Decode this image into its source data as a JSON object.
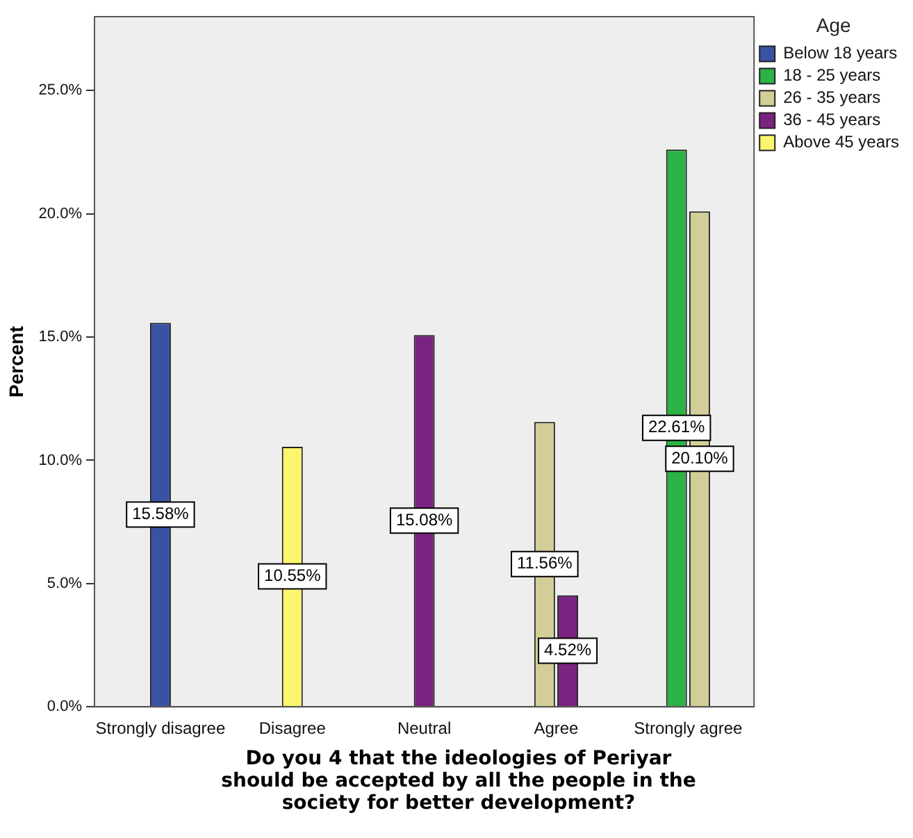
{
  "chart_data": {
    "type": "bar",
    "xlabel": "Do you 4 that the ideologies of Periyar should be accepted by all the people in the society for better development?",
    "ylabel": "Percent",
    "legend_title": "Age",
    "legend": "top right",
    "grid": false,
    "categories": [
      "Strongly disagree",
      "Disagree",
      "Neutral",
      "Agree",
      "Strongly agree"
    ],
    "ylim": [
      0,
      28
    ],
    "yticks": [
      {
        "value": 0,
        "label": "0.0%"
      },
      {
        "value": 5,
        "label": "5.0%"
      },
      {
        "value": 10,
        "label": "10.0%"
      },
      {
        "value": 15,
        "label": "15.0%"
      },
      {
        "value": 20,
        "label": "20.0%"
      },
      {
        "value": 25,
        "label": "25.0%"
      }
    ],
    "series": [
      {
        "name": "Below 18 years",
        "color": "#3953a4",
        "values": [
          15.58,
          null,
          null,
          null,
          null
        ],
        "value_labels": [
          "15.58%",
          null,
          null,
          null,
          null
        ]
      },
      {
        "name": "18 - 25 years",
        "color": "#2db245",
        "values": [
          null,
          null,
          null,
          null,
          22.61
        ],
        "value_labels": [
          null,
          null,
          null,
          null,
          "22.61%"
        ]
      },
      {
        "name": "26 - 35 years",
        "color": "#d3ce97",
        "values": [
          null,
          null,
          null,
          11.56,
          20.1
        ],
        "value_labels": [
          null,
          null,
          null,
          "11.56%",
          "20.10%"
        ]
      },
      {
        "name": "36 - 45 years",
        "color": "#7b2380",
        "values": [
          null,
          null,
          15.08,
          4.52,
          null
        ],
        "value_labels": [
          null,
          null,
          "15.08%",
          "4.52%",
          null
        ]
      },
      {
        "name": "Above 45 years",
        "color": "#fbf66d",
        "values": [
          null,
          10.55,
          null,
          null,
          null
        ],
        "value_labels": [
          null,
          "10.55%",
          null,
          null,
          null
        ]
      }
    ]
  }
}
